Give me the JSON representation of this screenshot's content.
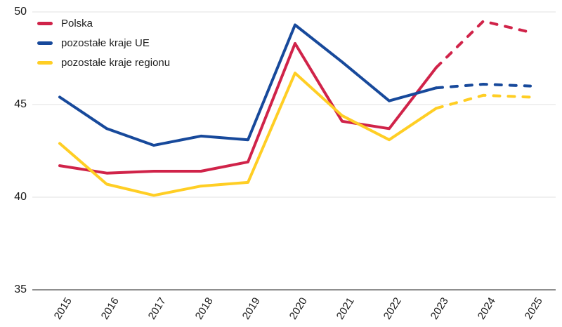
{
  "chart_data": {
    "type": "line",
    "title": "",
    "xlabel": "",
    "ylabel": "",
    "x": [
      2015,
      2016,
      2017,
      2018,
      2019,
      2020,
      2021,
      2022,
      2023,
      2024,
      2025
    ],
    "series": [
      {
        "name": "Polska",
        "color": "#D02349",
        "values": [
          41.7,
          41.3,
          41.4,
          41.4,
          41.9,
          48.3,
          44.1,
          43.7,
          47.0,
          49.5,
          48.9
        ]
      },
      {
        "name": "pozostałe kraje UE",
        "color": "#17499B",
        "values": [
          45.4,
          43.7,
          42.8,
          43.3,
          43.1,
          49.3,
          47.3,
          45.2,
          45.9,
          46.1,
          46.0
        ]
      },
      {
        "name": "pozostałe kraje regionu",
        "color": "#FFCE24",
        "values": [
          42.9,
          40.7,
          40.1,
          40.6,
          40.8,
          46.7,
          44.4,
          43.1,
          44.8,
          45.5,
          45.4
        ]
      }
    ],
    "ylim": [
      35,
      50
    ],
    "yticks": [
      35,
      40,
      45,
      50
    ],
    "forecast_from_x": 2023,
    "forecast_style": "dashed",
    "grid": "horizontal",
    "grid_color": "#e8e8e8",
    "axis_color": "#8f8f8f",
    "tick_text_color": "#1a1a1a",
    "legend_position": "top-left"
  }
}
